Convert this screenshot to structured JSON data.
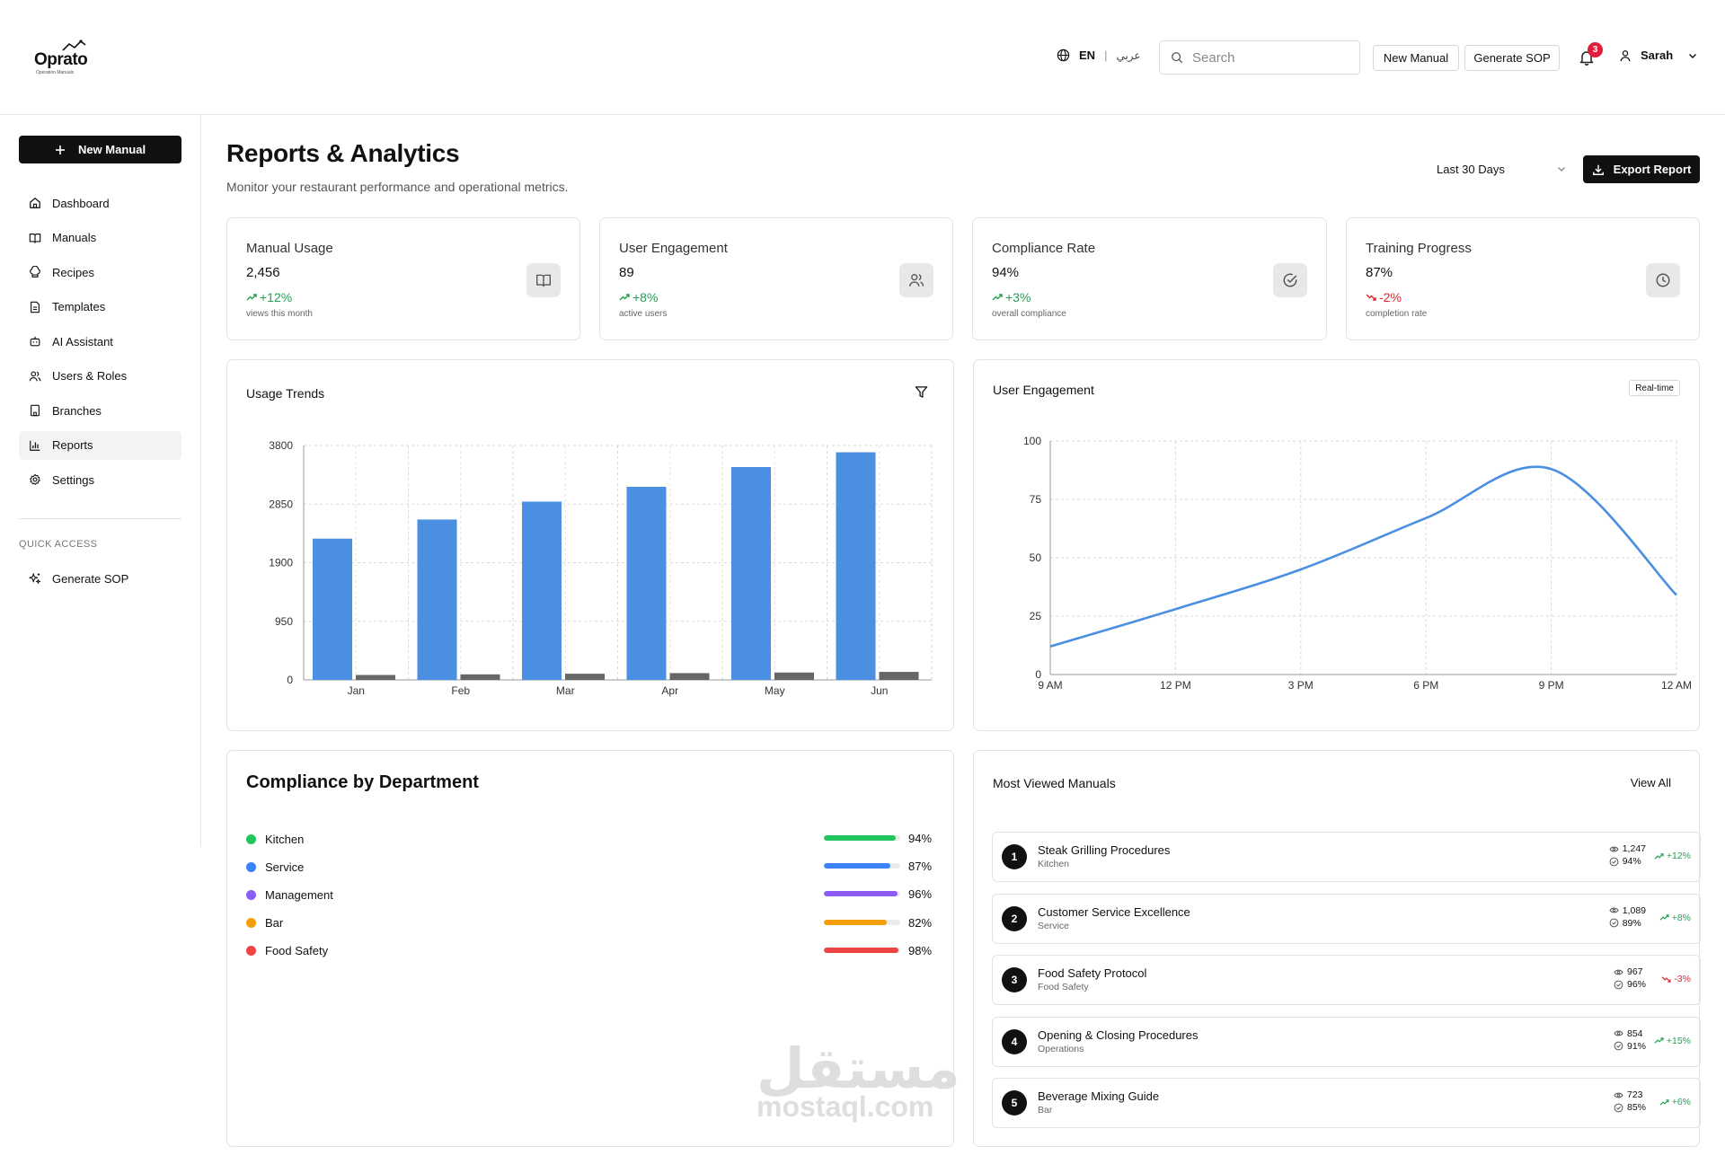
{
  "header": {
    "logo": {
      "word": "Oprato",
      "sub": "Operation Manuals"
    },
    "lang_en": "EN",
    "lang_ar": "عربي",
    "search_placeholder": "Search",
    "new_manual": "New Manual",
    "generate_sop": "Generate SOP",
    "notifications": "3",
    "user": "Sarah"
  },
  "sidebar": {
    "new_manual": "New Manual",
    "items": [
      {
        "label": "Dashboard",
        "icon": "home-icon"
      },
      {
        "label": "Manuals",
        "icon": "book-icon"
      },
      {
        "label": "Recipes",
        "icon": "chef-hat-icon"
      },
      {
        "label": "Templates",
        "icon": "file-icon"
      },
      {
        "label": "AI Assistant",
        "icon": "bot-icon"
      },
      {
        "label": "Users & Roles",
        "icon": "users-icon"
      },
      {
        "label": "Branches",
        "icon": "building-icon"
      },
      {
        "label": "Reports",
        "icon": "bar-chart-icon",
        "active": true
      },
      {
        "label": "Settings",
        "icon": "gear-icon"
      }
    ],
    "quick_access_title": "QUICK ACCESS",
    "quick_access": [
      {
        "label": "Generate SOP",
        "icon": "sparkles-icon"
      }
    ]
  },
  "page": {
    "title": "Reports & Analytics",
    "subtitle": "Monitor your restaurant performance and operational metrics.",
    "range": "Last 30 Days",
    "export": "Export Report"
  },
  "stats": [
    {
      "title": "Manual Usage",
      "value": "2,456",
      "change": "+12%",
      "trend": "up",
      "note": "views this month",
      "icon": "book-icon"
    },
    {
      "title": "User Engagement",
      "value": "89",
      "change": "+8%",
      "trend": "up",
      "note": "active users",
      "icon": "users-icon"
    },
    {
      "title": "Compliance Rate",
      "value": "94%",
      "change": "+3%",
      "trend": "up",
      "note": "overall compliance",
      "icon": "check-circle-icon"
    },
    {
      "title": "Training Progress",
      "value": "87%",
      "change": "-2%",
      "trend": "down",
      "note": "completion rate",
      "icon": "clock-icon"
    }
  ],
  "usage_panel": {
    "title": "Usage Trends"
  },
  "engagement_panel": {
    "title": "User Engagement",
    "badge": "Real-time"
  },
  "chart_data": [
    {
      "type": "bar",
      "categories": [
        "Jan",
        "Feb",
        "Mar",
        "Apr",
        "May",
        "Jun"
      ],
      "series": [
        {
          "values": [
            2290,
            2600,
            2890,
            3130,
            3450,
            3690
          ],
          "color": "#4a8fe1"
        },
        {
          "values": [
            80,
            90,
            100,
            110,
            120,
            130
          ],
          "color": "#666666"
        }
      ],
      "ylim": [
        0,
        3800
      ],
      "yticks": [
        0,
        950,
        1900,
        2850,
        3800
      ],
      "grid": true
    },
    {
      "type": "line",
      "x": [
        "9 AM",
        "12 PM",
        "3 PM",
        "6 PM",
        "9 PM",
        "12 AM"
      ],
      "series": [
        {
          "values": [
            12,
            28,
            45,
            67,
            88,
            34
          ],
          "color": "#4a8fe1"
        }
      ],
      "ylim": [
        0,
        100
      ],
      "yticks": [
        0,
        25,
        50,
        75,
        100
      ],
      "grid": true
    }
  ],
  "compliance": {
    "title": "Compliance by Department",
    "departments": [
      {
        "name": "Kitchen",
        "value": 94,
        "label": "94%",
        "color": "#22c55e"
      },
      {
        "name": "Service",
        "value": 87,
        "label": "87%",
        "color": "#3b82f6"
      },
      {
        "name": "Management",
        "value": 96,
        "label": "96%",
        "color": "#8b5cf6"
      },
      {
        "name": "Bar",
        "value": 82,
        "label": "82%",
        "color": "#f59e0b"
      },
      {
        "name": "Food Safety",
        "value": 98,
        "label": "98%",
        "color": "#ef4444"
      }
    ]
  },
  "most_viewed": {
    "title": "Most Viewed Manuals",
    "view_all": "View All",
    "items": [
      {
        "rank": "1",
        "title": "Steak Grilling Procedures",
        "category": "Kitchen",
        "views": "1,247",
        "compliance": "94%",
        "trend": "+12%",
        "dir": "up"
      },
      {
        "rank": "2",
        "title": "Customer Service Excellence",
        "category": "Service",
        "views": "1,089",
        "compliance": "89%",
        "trend": "+8%",
        "dir": "up"
      },
      {
        "rank": "3",
        "title": "Food Safety Protocol",
        "category": "Food Safety",
        "views": "967",
        "compliance": "96%",
        "trend": "-3%",
        "dir": "down"
      },
      {
        "rank": "4",
        "title": "Opening & Closing Procedures",
        "category": "Operations",
        "views": "854",
        "compliance": "91%",
        "trend": "+15%",
        "dir": "up"
      },
      {
        "rank": "5",
        "title": "Beverage Mixing Guide",
        "category": "Bar",
        "views": "723",
        "compliance": "85%",
        "trend": "+6%",
        "dir": "up"
      }
    ]
  },
  "watermark": {
    "ar": "مستقل",
    "en": "mostaql.com"
  }
}
